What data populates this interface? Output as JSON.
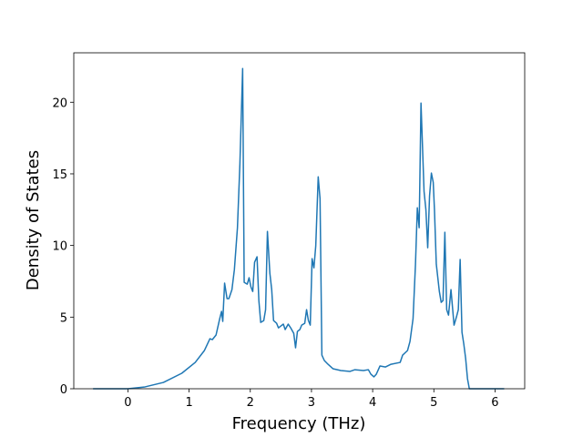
{
  "chart_data": {
    "type": "line",
    "x_label": "Frequency (THz)",
    "y_label": "Density of States",
    "xlim": [
      -0.885,
      6.485
    ],
    "ylim": [
      0,
      23.45
    ],
    "xticks": [
      0,
      1,
      2,
      3,
      4,
      5,
      6
    ],
    "yticks": [
      0,
      5,
      10,
      15,
      20
    ],
    "series": [
      {
        "color": "#1f77b4",
        "x": [
          -0.57,
          0,
          0.28,
          0.58,
          0.88,
          1.1,
          1.25,
          1.34,
          1.38,
          1.44,
          1.5,
          1.53,
          1.55,
          1.58,
          1.62,
          1.65,
          1.7,
          1.74,
          1.79,
          1.83,
          1.875,
          1.9,
          1.95,
          1.98,
          2.01,
          2.04,
          2.07,
          2.11,
          2.14,
          2.17,
          2.22,
          2.25,
          2.28,
          2.32,
          2.35,
          2.38,
          2.43,
          2.46,
          2.5,
          2.54,
          2.57,
          2.62,
          2.66,
          2.71,
          2.74,
          2.77,
          2.81,
          2.84,
          2.89,
          2.92,
          2.95,
          2.98,
          3.01,
          3.04,
          3.07,
          3.11,
          3.14,
          3.17,
          3.21,
          3.27,
          3.35,
          3.48,
          3.63,
          3.71,
          3.85,
          3.93,
          3.97,
          4.02,
          4.06,
          4.12,
          4.21,
          4.3,
          4.45,
          4.49,
          4.57,
          4.61,
          4.66,
          4.7,
          4.73,
          4.76,
          4.79,
          4.84,
          4.87,
          4.9,
          4.93,
          4.96,
          4.99,
          5.01,
          5.04,
          5.09,
          5.12,
          5.15,
          5.18,
          5.21,
          5.24,
          5.28,
          5.33,
          5.37,
          5.4,
          5.43,
          5.46,
          5.49,
          5.52,
          5.55,
          5.58,
          5.79,
          6.15
        ],
        "values": [
          0,
          0,
          0.13,
          0.44,
          1.08,
          1.84,
          2.67,
          3.49,
          3.43,
          3.75,
          4.89,
          5.4,
          4.7,
          7.37,
          6.29,
          6.29,
          6.92,
          8.32,
          11.24,
          15.68,
          22.35,
          7.43,
          7.3,
          7.75,
          7.11,
          6.79,
          8.83,
          9.21,
          6.16,
          4.63,
          4.76,
          5.52,
          10.98,
          8.06,
          6.92,
          4.76,
          4.57,
          4.25,
          4.38,
          4.51,
          4.13,
          4.51,
          4.25,
          3.87,
          2.86,
          4,
          4.13,
          4.44,
          4.57,
          5.52,
          4.76,
          4.44,
          9.08,
          8.44,
          9.97,
          14.79,
          13.27,
          2.35,
          1.97,
          1.71,
          1.4,
          1.27,
          1.21,
          1.33,
          1.27,
          1.33,
          1.02,
          0.83,
          1.02,
          1.59,
          1.52,
          1.71,
          1.84,
          2.35,
          2.67,
          3.3,
          4.89,
          8.7,
          12.63,
          11.24,
          19.94,
          13.78,
          12.51,
          9.84,
          13.46,
          15.05,
          14.41,
          12.51,
          8.7,
          6.79,
          6.03,
          6.16,
          10.92,
          5.52,
          5.14,
          6.92,
          4.44,
          5.02,
          5.52,
          9.02,
          3.94,
          3.11,
          2.1,
          0.7,
          0,
          0,
          0
        ]
      }
    ]
  }
}
